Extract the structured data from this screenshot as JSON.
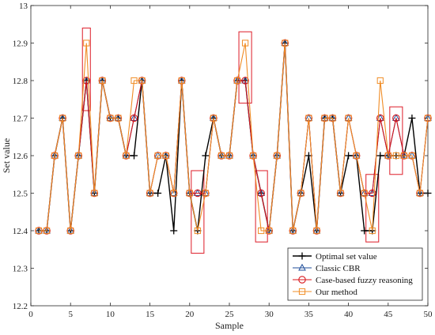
{
  "chart_data": {
    "type": "line",
    "xlabel": "Sample",
    "ylabel": "Set value",
    "xlim": [
      0,
      50
    ],
    "ylim": [
      12.2,
      13.0
    ],
    "x_ticks": [
      "0",
      "5",
      "10",
      "15",
      "20",
      "25",
      "30",
      "35",
      "40",
      "45",
      "50"
    ],
    "y_ticks": [
      "12.2",
      "12.3",
      "12.4",
      "12.5",
      "12.6",
      "12.7",
      "12.8",
      "12.9",
      "13"
    ],
    "grid": false,
    "legend_position": "bottom-right",
    "x": [
      1,
      2,
      3,
      4,
      5,
      6,
      7,
      8,
      9,
      10,
      11,
      12,
      13,
      14,
      15,
      16,
      17,
      18,
      19,
      20,
      21,
      22,
      23,
      24,
      25,
      26,
      27,
      28,
      29,
      30,
      31,
      32,
      33,
      34,
      35,
      36,
      37,
      38,
      39,
      40,
      41,
      42,
      43,
      44,
      45,
      46,
      47,
      48,
      49,
      50
    ],
    "series": [
      {
        "name": "Optimal set value",
        "color": "#000000",
        "marker": "plus",
        "values": [
          12.4,
          12.4,
          12.6,
          12.7,
          12.4,
          12.6,
          12.8,
          12.5,
          12.8,
          12.7,
          12.7,
          12.6,
          12.6,
          12.8,
          12.5,
          12.5,
          12.6,
          12.4,
          12.8,
          12.5,
          12.4,
          12.6,
          12.7,
          12.6,
          12.6,
          12.8,
          12.8,
          12.6,
          12.5,
          12.4,
          12.6,
          12.9,
          12.4,
          12.5,
          12.6,
          12.4,
          12.7,
          12.7,
          12.5,
          12.6,
          12.6,
          12.4,
          12.4,
          12.6,
          12.6,
          12.6,
          12.6,
          12.7,
          12.5,
          12.5
        ]
      },
      {
        "name": "Classic CBR",
        "color": "#1f4e9a",
        "marker": "triangle",
        "values": [
          12.4,
          12.4,
          12.6,
          12.7,
          12.4,
          12.6,
          12.8,
          12.5,
          12.8,
          12.7,
          12.7,
          12.6,
          12.7,
          12.8,
          12.5,
          12.6,
          12.6,
          12.5,
          12.8,
          12.5,
          12.5,
          12.5,
          12.7,
          12.6,
          12.6,
          12.8,
          12.8,
          12.6,
          12.5,
          12.4,
          12.6,
          12.9,
          12.4,
          12.5,
          12.7,
          12.4,
          12.7,
          12.7,
          12.5,
          12.7,
          12.6,
          12.5,
          12.5,
          12.7,
          12.6,
          12.7,
          12.6,
          12.6,
          12.5,
          12.7
        ]
      },
      {
        "name": "Case-based fuzzy reasoning",
        "color": "#d8151b",
        "marker": "circle",
        "values": [
          12.4,
          12.4,
          12.6,
          12.7,
          12.4,
          12.6,
          12.8,
          12.5,
          12.8,
          12.7,
          12.7,
          12.6,
          12.7,
          12.8,
          12.5,
          12.6,
          12.6,
          12.5,
          12.8,
          12.5,
          12.5,
          12.5,
          12.7,
          12.6,
          12.6,
          12.8,
          12.8,
          12.6,
          12.5,
          12.4,
          12.6,
          12.9,
          12.4,
          12.5,
          12.7,
          12.4,
          12.7,
          12.7,
          12.5,
          12.7,
          12.6,
          12.5,
          12.5,
          12.7,
          12.6,
          12.7,
          12.6,
          12.6,
          12.5,
          12.7
        ]
      },
      {
        "name": "Our method",
        "color": "#f08c25",
        "marker": "square",
        "values": [
          12.4,
          12.4,
          12.6,
          12.7,
          12.4,
          12.6,
          12.9,
          12.5,
          12.8,
          12.7,
          12.7,
          12.6,
          12.8,
          12.8,
          12.5,
          12.6,
          12.6,
          12.5,
          12.8,
          12.5,
          12.4,
          12.5,
          12.7,
          12.6,
          12.6,
          12.8,
          12.9,
          12.6,
          12.4,
          12.4,
          12.6,
          12.9,
          12.4,
          12.5,
          12.7,
          12.4,
          12.7,
          12.7,
          12.5,
          12.7,
          12.6,
          12.5,
          12.4,
          12.8,
          12.6,
          12.6,
          12.6,
          12.6,
          12.5,
          12.7
        ]
      }
    ],
    "highlight_boxes": [
      {
        "x_from": 6.5,
        "x_to": 7.5,
        "y_from": 12.72,
        "y_to": 12.94
      },
      {
        "x_from": 20.2,
        "x_to": 21.8,
        "y_from": 12.34,
        "y_to": 12.56
      },
      {
        "x_from": 26.2,
        "x_to": 27.8,
        "y_from": 12.74,
        "y_to": 12.93
      },
      {
        "x_from": 28.3,
        "x_to": 29.8,
        "y_from": 12.37,
        "y_to": 12.56
      },
      {
        "x_from": 42.2,
        "x_to": 43.8,
        "y_from": 12.37,
        "y_to": 12.55
      },
      {
        "x_from": 45.2,
        "x_to": 46.8,
        "y_from": 12.55,
        "y_to": 12.73
      }
    ],
    "highlight_color": "#e0303a"
  }
}
